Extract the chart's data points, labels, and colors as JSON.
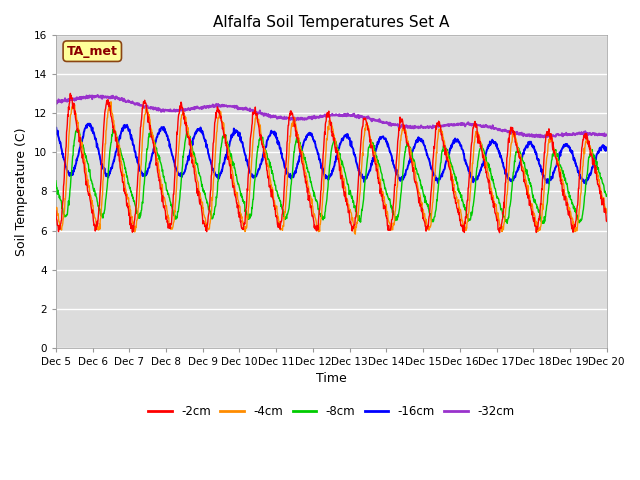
{
  "title": "Alfalfa Soil Temperatures Set A",
  "xlabel": "Time",
  "ylabel": "Soil Temperature (C)",
  "ylim": [
    0,
    16
  ],
  "yticks": [
    0,
    2,
    4,
    6,
    8,
    10,
    12,
    14,
    16
  ],
  "xtick_labels": [
    "Dec 5",
    "Dec 6",
    "Dec 7",
    "Dec 8",
    "Dec 9",
    "Dec 10",
    "Dec 11",
    "Dec 12",
    "Dec 13",
    "Dec 14",
    "Dec 15",
    "Dec 16",
    "Dec 17",
    "Dec 18",
    "Dec 19",
    "Dec 20"
  ],
  "annotation_text": "TA_met",
  "annotation_color": "#8B0000",
  "annotation_bg": "#FFFF99",
  "annotation_border": "#8B4513",
  "colors": {
    "-2cm": "#FF0000",
    "-4cm": "#FF8C00",
    "-8cm": "#00CC00",
    "-16cm": "#0000FF",
    "-32cm": "#9932CC"
  },
  "legend_labels": [
    "-2cm",
    "-4cm",
    "-8cm",
    "-16cm",
    "-32cm"
  ],
  "bg_color": "#DCDCDC",
  "fig_bg": "#FFFFFF",
  "n_points": 1440,
  "days": 15
}
